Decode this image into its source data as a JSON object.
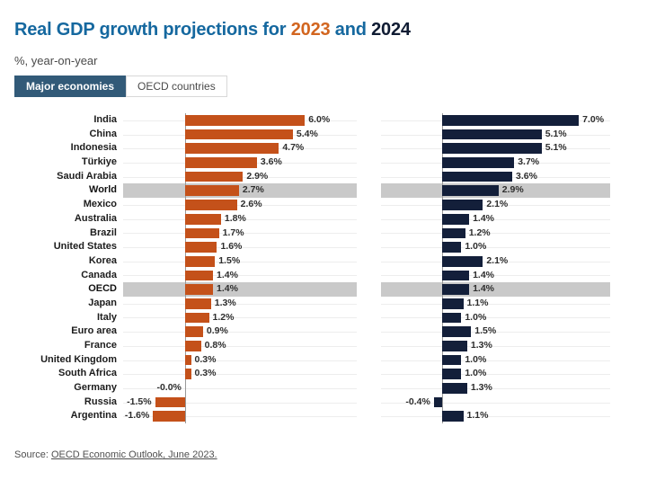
{
  "title": {
    "prefix": "Real GDP growth projections for ",
    "year_2023": "2023",
    "conjunction": " and ",
    "year_2024": "2024"
  },
  "subtitle": "%, year-on-year",
  "tabs": [
    {
      "label": "Major economies",
      "active": true
    },
    {
      "label": "OECD countries",
      "active": false
    }
  ],
  "source": {
    "prefix": "Source: ",
    "link": "OECD Economic Outlook, June 2023."
  },
  "colors": {
    "title_blue": "#15689f",
    "title_orange": "#d2651f",
    "orange_2023": "#c4511a",
    "navy_2024": "#131f3a",
    "highlight_band": "#c9c9c9",
    "tab_active_bg": "#325a78",
    "axis_line": "#999999",
    "row_gridline": "#ededed"
  },
  "chart_data": {
    "type": "bar",
    "orientation": "horizontal",
    "title": "Real GDP growth projections for 2023 and 2024",
    "subtitle": "%, year-on-year",
    "unit": "%",
    "axis": {
      "min": -3.1,
      "max": 8.6
    },
    "grid": "per-row horizontal lines",
    "categories": [
      "India",
      "China",
      "Indonesia",
      "Türkiye",
      "Saudi Arabia",
      "World",
      "Mexico",
      "Australia",
      "Brazil",
      "United States",
      "Korea",
      "Canada",
      "OECD",
      "Japan",
      "Italy",
      "Euro area",
      "France",
      "United Kingdom",
      "South Africa",
      "Germany",
      "Russia",
      "Argentina"
    ],
    "highlight_rows": [
      "World",
      "OECD"
    ],
    "series": [
      {
        "name": "2023",
        "color_key": "orange_2023",
        "values": [
          6.0,
          5.4,
          4.7,
          3.6,
          2.9,
          2.7,
          2.6,
          1.8,
          1.7,
          1.6,
          1.5,
          1.4,
          1.4,
          1.3,
          1.2,
          0.9,
          0.8,
          0.3,
          0.3,
          0.0,
          -1.5,
          -1.6
        ],
        "labels": [
          "6.0%",
          "5.4%",
          "4.7%",
          "3.6%",
          "2.9%",
          "2.7%",
          "2.6%",
          "1.8%",
          "1.7%",
          "1.6%",
          "1.5%",
          "1.4%",
          "1.4%",
          "1.3%",
          "1.2%",
          "0.9%",
          "0.8%",
          "0.3%",
          "0.3%",
          "-0.0%",
          "-1.5%",
          "-1.6%"
        ]
      },
      {
        "name": "2024",
        "color_key": "navy_2024",
        "values": [
          7.0,
          5.1,
          5.1,
          3.7,
          3.6,
          2.9,
          2.1,
          1.4,
          1.2,
          1.0,
          2.1,
          1.4,
          1.4,
          1.1,
          1.0,
          1.5,
          1.3,
          1.0,
          1.0,
          1.3,
          -0.4,
          1.1
        ],
        "labels": [
          "7.0%",
          "5.1%",
          "5.1%",
          "3.7%",
          "3.6%",
          "2.9%",
          "2.1%",
          "1.4%",
          "1.2%",
          "1.0%",
          "2.1%",
          "1.4%",
          "1.4%",
          "1.1%",
          "1.0%",
          "1.5%",
          "1.3%",
          "1.0%",
          "1.0%",
          "1.3%",
          "-0.4%",
          "1.1%"
        ]
      }
    ]
  }
}
